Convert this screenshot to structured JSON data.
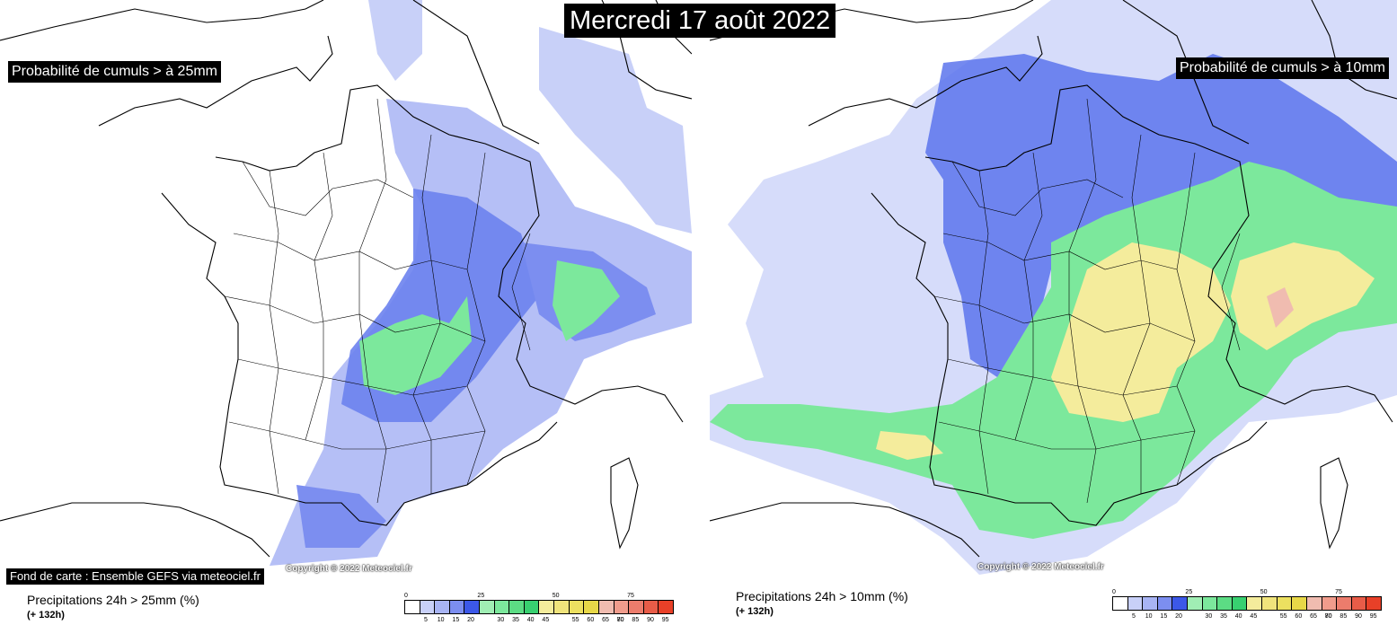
{
  "header": {
    "date": "Mercredi 17 août 2022"
  },
  "left_map": {
    "threshold_label": "Probabilité de cumuls > à 25mm",
    "credit": "Fond de carte : Ensemble GEFS via meteociel.fr",
    "copyright": "Copyright © 2022 Meteociel.fr",
    "legend_title": "Precipitations 24h > 25mm (%)",
    "legend_subtitle": "(+ 132h)"
  },
  "right_map": {
    "threshold_label": "Probabilité de cumuls > à 10mm",
    "copyright": "Copyright © 2022 Meteociel.fr",
    "legend_title": "Precipitations 24h > 10mm (%)",
    "legend_subtitle": "(+ 132h)"
  },
  "color_scale": {
    "top_ticks": [
      "0",
      "25",
      "50",
      "75"
    ],
    "bottom_ticks": [
      "5",
      "10",
      "15",
      "20",
      "30",
      "35",
      "40",
      "45",
      "55",
      "60",
      "65",
      "70",
      "80",
      "85",
      "90",
      "95"
    ],
    "colors": [
      "#ffffff",
      "#c8d0f8",
      "#a8b4f4",
      "#7c8ef0",
      "#3c58e8",
      "#a0eeb4",
      "#7ce89c",
      "#5cdc84",
      "#38d070",
      "#f4ec9c",
      "#f0e47c",
      "#ece060",
      "#e8d848",
      "#f0bcb0",
      "#f09c8c",
      "#ec7c6c",
      "#e85c48",
      "#e84028"
    ]
  }
}
